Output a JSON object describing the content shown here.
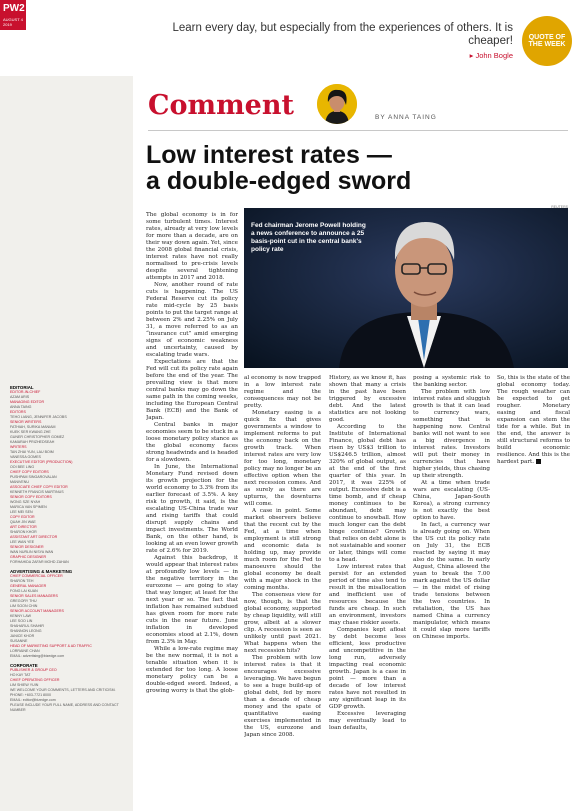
{
  "folio": {
    "page": "PW2",
    "date": "AUGUST 4 2019"
  },
  "quote": {
    "text": "Learn every day, but especially from the experiences of others. It is cheaper!",
    "author": "▸ John Bogle",
    "badge": "QUOTE OF THE WEEK"
  },
  "section_title": "Comment",
  "byline": "BY ANNA TAING",
  "headline_line1": "Low interest rates —",
  "headline_line2": "a double-edged sword",
  "photo_credit": "REUTERS",
  "photo_caption": "Fed chairman Jerome Powell holding a news conference to announce a 25 basis-point cut in the central bank's policy rate",
  "masthead": [
    {
      "label": "EDITORIAL",
      "type": "h"
    },
    {
      "label": "EDITOR-IN-CHIEF",
      "type": "r"
    },
    {
      "label": "AZAM ARIS",
      "type": "n"
    },
    {
      "label": "MANAGING EDITOR",
      "type": "r"
    },
    {
      "label": "ANNA TAING",
      "type": "n"
    },
    {
      "label": "EDITORS",
      "type": "r"
    },
    {
      "label": "TEHO LIANG, JENNIFER JACOBS",
      "type": "n"
    },
    {
      "label": "SENIOR WRITERS",
      "type": "r"
    },
    {
      "label": "FATHIAH, SURIKA MANIAM",
      "type": "n"
    },
    {
      "label": "KUEK SER KWANG ZHE",
      "type": "n"
    },
    {
      "label": "GUNER CHRISTOPHER GOMEZ",
      "type": "n"
    },
    {
      "label": "KAMARAH PRIZHEDSEAH",
      "type": "n"
    },
    {
      "label": "WRITERS",
      "type": "r"
    },
    {
      "label": "TAN ZHAI YUN, LAU BOIM",
      "type": "n"
    },
    {
      "label": "VANESSA GOMES",
      "type": "n"
    },
    {
      "label": "EXECUTIVE EDITOR (PRODUCTION)",
      "type": "r"
    },
    {
      "label": "OOI BEE LING",
      "type": "n"
    },
    {
      "label": "CHIEF COPY EDITORS",
      "type": "r"
    },
    {
      "label": "PUSHPAM SINGAROVALAN",
      "type": "n"
    },
    {
      "label": "MANIVENU",
      "type": "n"
    },
    {
      "label": "ASSOCIATE CHIEF COPY EDITOR",
      "type": "r"
    },
    {
      "label": "KENNETH FRANCIS MARTINUS",
      "type": "n"
    },
    {
      "label": "SENIOR COPY EDITORS",
      "type": "r"
    },
    {
      "label": "WONG SZE NYAH",
      "type": "n"
    },
    {
      "label": "MARICA VAN SPIMEN",
      "type": "n"
    },
    {
      "label": "LEE MEI SEN",
      "type": "n"
    },
    {
      "label": "COPY EDITOR",
      "type": "r"
    },
    {
      "label": "QUAH JIN WAE",
      "type": "n"
    },
    {
      "label": "ART DIRECTOR",
      "type": "r"
    },
    {
      "label": "SHARON KHOR",
      "type": "n"
    },
    {
      "label": "ASSISTANT ART DIRECTOR",
      "type": "r"
    },
    {
      "label": "LEE WAN YEE",
      "type": "n"
    },
    {
      "label": "SENIOR DESIGNER",
      "type": "r"
    },
    {
      "label": "WAN NURLIN NISYA WAN",
      "type": "n"
    },
    {
      "label": "GRAPHIC DESIGNER",
      "type": "r"
    },
    {
      "label": "FORHAHIDA ZAFAR MOHD ZAHAN",
      "type": "n"
    },
    {
      "label": "ADVERTISING & MARKETING",
      "type": "h"
    },
    {
      "label": "CHIEF COMMERCIAL OFFICER",
      "type": "r"
    },
    {
      "label": "SHARON TEH",
      "type": "n"
    },
    {
      "label": "GENERAL MANAGER",
      "type": "r"
    },
    {
      "label": "FONG LAI KUAN",
      "type": "n"
    },
    {
      "label": "SENIOR SALES MANAGERS",
      "type": "r"
    },
    {
      "label": "GREGORY THU",
      "type": "n"
    },
    {
      "label": "LIM SOON CHIN",
      "type": "n"
    },
    {
      "label": "SENIOR ACCOUNT MANAGERS",
      "type": "r"
    },
    {
      "label": "KENNY LAW",
      "type": "n"
    },
    {
      "label": "LEE SOO LIN",
      "type": "n"
    },
    {
      "label": "SHAHARUL SHAHIR",
      "type": "n"
    },
    {
      "label": "SHANNON LEONG",
      "type": "n"
    },
    {
      "label": "JANICE KHOR",
      "type": "n"
    },
    {
      "label": "SUSANNE",
      "type": "n"
    },
    {
      "label": "HEAD OF MARKETING SUPPORT & AD TRAFFIC",
      "type": "r"
    },
    {
      "label": "LORRAINE CHAN",
      "type": "n"
    },
    {
      "label": "EMAIL: advertising@bizedge.com",
      "type": "n"
    },
    {
      "label": "CORPORATE",
      "type": "h"
    },
    {
      "label": "PUBLISHER & GROUP CEO",
      "type": "r"
    },
    {
      "label": "HO KAY TAT",
      "type": "n"
    },
    {
      "label": "CHIEF OPERATING OFFICER",
      "type": "r"
    },
    {
      "label": "LIM SHIEW YUIN",
      "type": "n"
    },
    {
      "label": "WE WELCOME YOUR COMMENTS, LETTERS AND CRITICISM.",
      "type": "n"
    },
    {
      "label": "PHONE: +603-7721 8000",
      "type": "n"
    },
    {
      "label": "EMAIL: editor@bizedge.com",
      "type": "n"
    },
    {
      "label": "PLEASE INCLUDE YOUR FULL NAME, ADDRESS AND CONTACT NUMBER",
      "type": "n"
    }
  ],
  "columns": {
    "c1": [
      "The global economy is in for some turbulent times. Interest rates, already at very low levels for more than a decade, are on their way down again. Yet, since the 2008 global financial crisis, interest rates have not really normalised to pre-crisis levels despite several tightening attempts in 2017 and 2018.",
      "Now, another round of rate cuts is happening. The US Federal Reserve cut its policy rate mid-cycle by 25 basis points to put the target range at between 2% and 2.25% on July 31, a move referred to as an “insurance cut” amid emerging signs of economic weakness and uncertainty, caused by escalating trade wars.",
      "Expectations are that the Fed will cut its policy rate again before the end of the year. The prevailing view is that more central banks may go down the same path in the coming weeks, including the European Central Bank (ECB) and the Bank of Japan.",
      "Central banks in major economies seem to be stuck in a loose monetary policy stance as the global economy faces strong headwinds and is headed for a slowdown.",
      "In June, the International Monetary Fund revised down its growth projection for the world economy to 3.3% from its earlier forecast of 3.5%. A key risk to growth, it said, is the escalating US-China trade war and rising tariffs that could disrupt supply chains and impact investments. The World Bank, on the other hand, is looking at an even lower growth rate of 2.6% for 2019.",
      "Against this backdrop, it would appear that interest rates at profoundly low levels — in the negative territory in the eurozone — are going to stay that way longer, at least for the next year or so. The fact that inflation has remained subdued has given room for more rate cuts in the near future. June inflation in developed economies stood at 2.1%, down from 2.3% in May.",
      "While a low-rate regime may be the new normal, it is not a tenable situation when it is extended for too long. A loose monetary policy can be a double-edged sword. Indeed, a growing worry is that the glob-"
    ],
    "c2": [
      "al economy is now trapped in a low interest rate regime and the consequences may not be pretty.",
      "Monetary easing is a quick fix that gives governments a window to implement reforms to put the economy back on the growth track. When interest rates are very low for too long, monetary policy may no longer be an effective option when the next recession comes. And as surely as there are upturns, the downturns will come.",
      "A case in point. Some market observers believe that the recent cut by the Fed, at a time when employment is still strong and economic data is holding up, may provide much room for the Fed to manoeuvre should the global economy be dealt with a major shock in the coming months.",
      "The consensus view for now, though, is that the global economy, supported by cheap liquidity, will still grow, albeit at a slower clip. A recession is seen as unlikely until past 2021. What happens when the next recession hits?",
      "The problem with low interest rates is that it encourages excessive leveraging. We have begun to see a huge build-up of global debt, fed by more than a decade of cheap money and the spate of quantitative easing exercises implemented in the US, eurozone and Japan since 2008."
    ],
    "c3": [
      "History, as we know it, has shown that many a crisis in the past have been triggered by excessive debt. And the latest statistics are not looking good.",
      "According to the Institute of International Finance, global debt has risen by US$3 trillion to US$246.5 trillion, almost 320% of global output, as at the end of the first quarter of this year. In 2017, it was 225% of output. Excessive debt is a time bomb, and if cheap money continues to be abundant, debt may continue to snowball. How much longer can the debt binge continue? Growth that relies on debt alone is not sustainable and sooner or later, things will come to a head.",
      "Low interest rates that persist for an extended period of time also tend to result in the misallocation and inefficient use of resources because the funds are cheap. In such an environment, investors may chase riskier assets.",
      "Companies kept afloat by debt become less efficient, less productive and uncompetitive in the long run, adversely impacting real economic growth. Japan is a case in point — more than a decade of low interest rates have not resulted in any significant leap in its GDP growth.",
      "Excessive leveraging may eventually lead to loan defaults,"
    ],
    "c4": [
      "posing a systemic risk to the banking sector.",
      "The problem with low interest rates and sluggish growth is that it can lead to currency wars, something that is happening now. Central banks will not want to see a big divergence in interest rates. Investors will put their money in currencies that have higher yields, thus chasing up their strength.",
      "At a time when trade wars are escalating (US-China, Japan-South Korea), a strong currency is not exactly the best option to have.",
      "In fact, a currency war is already going on. When the US cut its policy rate on July 31, the ECB reacted by saying it may also do the same. In early August, China allowed the yuan to break the 7.00 mark against the US dollar — in the midst of rising trade tensions between the two countries. In retaliation, the US has named China a currency manipulator, which means it could slap more tariffs on Chinese imports."
    ],
    "c5": [
      "So, this is the state of the global economy today. The rough weather can be expected to get rougher. Monetary easing and fiscal expansion can stem the tide for a while. But in the end, the answer is still structural reforms to build economic resilience. And this is the hardest part."
    ]
  }
}
